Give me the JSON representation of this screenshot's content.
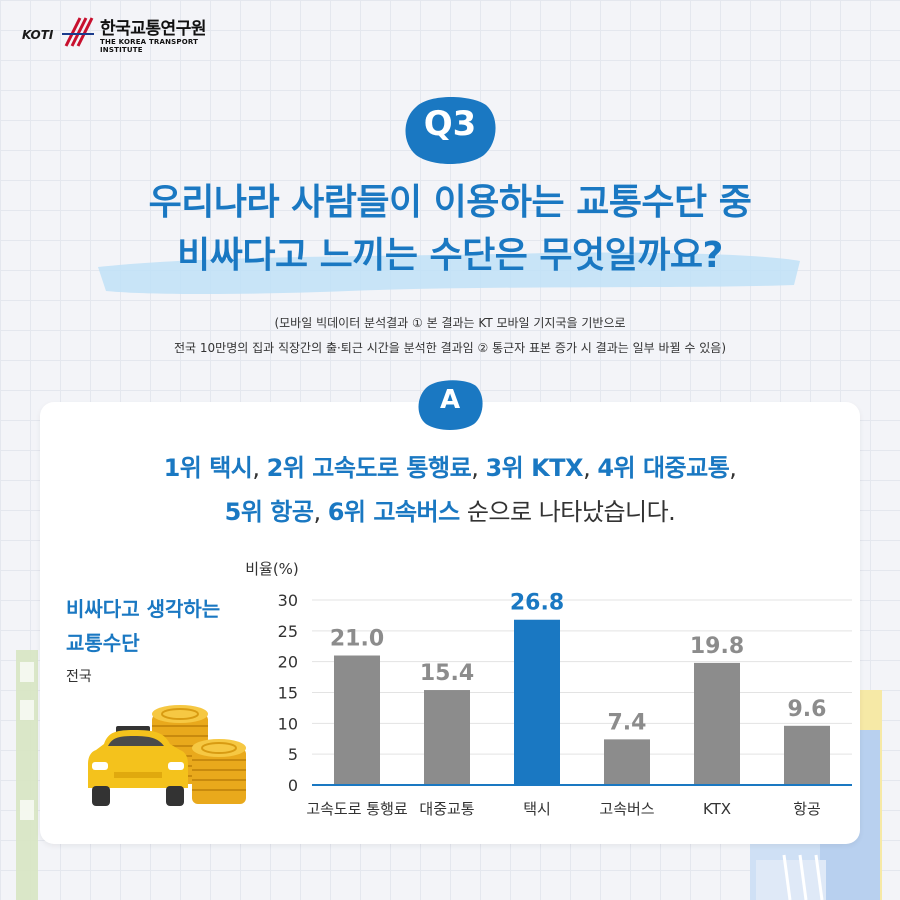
{
  "logo": {
    "mark": "KOTI",
    "name_ko": "한국교통연구원",
    "name_en": "THE KOREA TRANSPORT INSTITUTE"
  },
  "question": {
    "badge": "Q3",
    "title_line1": "우리나라 사람들이 이용하는 교통수단 중",
    "title_line2": "비싸다고 느끼는 수단은 무엇일까요?",
    "note_line1": "(모바일 빅데이터 분석결과 ① 본 결과는 KT 모바일 기지국을 기반으로",
    "note_line2": "전국 10만명의 집과 직장간의 출·퇴근 시간을 분석한 결과임 ② 통근자 표본 증가 시 결과는 일부 바뀔 수 있음)"
  },
  "answer": {
    "badge": "A",
    "parts_line1": [
      {
        "t": "1위 택시",
        "hl": true
      },
      {
        "t": ", ",
        "hl": false
      },
      {
        "t": "2위 고속도로 통행료",
        "hl": true
      },
      {
        "t": ", ",
        "hl": false
      },
      {
        "t": "3위 KTX",
        "hl": true
      },
      {
        "t": ", ",
        "hl": false
      },
      {
        "t": "4위 대중교통",
        "hl": true
      },
      {
        "t": ",",
        "hl": false
      }
    ],
    "parts_line2": [
      {
        "t": "5위 항공",
        "hl": true
      },
      {
        "t": ", ",
        "hl": false
      },
      {
        "t": "6위 고속버스",
        "hl": true
      },
      {
        "t": " 순으로 나타났습니다.",
        "hl": false
      }
    ]
  },
  "side": {
    "title_line1": "비싸다고 생각하는",
    "title_line2": "교통수단",
    "subtitle": "전국",
    "icons": [
      "taxi-icon",
      "coin-stack-icon"
    ]
  },
  "colors": {
    "accent": "#1a78c2",
    "bar": "#8c8c8c",
    "highlight_bar": "#1a78c2",
    "label_gray": "#8c8c8c"
  },
  "chart_data": {
    "type": "bar",
    "ylabel": "비율(%)",
    "ylim": [
      0,
      30
    ],
    "yticks": [
      0,
      5,
      10,
      15,
      20,
      25,
      30
    ],
    "grid": true,
    "categories": [
      "고속도로 통행료",
      "대중교통",
      "택시",
      "고속버스",
      "KTX",
      "항공"
    ],
    "values": [
      21.0,
      15.4,
      26.8,
      7.4,
      19.8,
      9.6
    ],
    "value_labels": [
      "21.0",
      "15.4",
      "26.8",
      "7.4",
      "19.8",
      "9.6"
    ],
    "highlight_index": 2
  }
}
